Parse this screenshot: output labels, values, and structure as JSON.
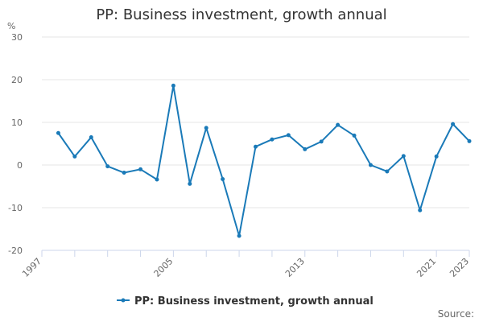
{
  "chart_data": {
    "type": "line",
    "title": "PP: Business investment, growth annual",
    "ylabel": "%",
    "xlabel": "",
    "x": [
      1998,
      1999,
      2000,
      2001,
      2002,
      2003,
      2004,
      2005,
      2006,
      2007,
      2008,
      2009,
      2010,
      2011,
      2012,
      2013,
      2014,
      2015,
      2016,
      2017,
      2018,
      2019,
      2020,
      2021,
      2022,
      2023
    ],
    "xlim": [
      1997,
      2023
    ],
    "ylim": [
      -20,
      30
    ],
    "x_ticks": [
      1997,
      2005,
      2013,
      2021,
      2023
    ],
    "y_ticks": [
      -20,
      -10,
      0,
      10,
      20,
      30
    ],
    "grid": "horizontal",
    "legend_position": "bottom-center",
    "series": [
      {
        "name": "PP: Business investment, growth annual",
        "color": "#1a7ab8",
        "values": [
          7.5,
          2.0,
          6.5,
          -0.3,
          -1.8,
          -1.0,
          -3.4,
          18.6,
          -4.4,
          8.7,
          -3.3,
          -16.6,
          4.3,
          6.0,
          7.0,
          3.7,
          5.5,
          9.4,
          6.9,
          0.0,
          -1.5,
          2.1,
          -10.6,
          2.0,
          9.6,
          5.6
        ]
      }
    ]
  },
  "footer": {
    "source_label": "Source:"
  }
}
